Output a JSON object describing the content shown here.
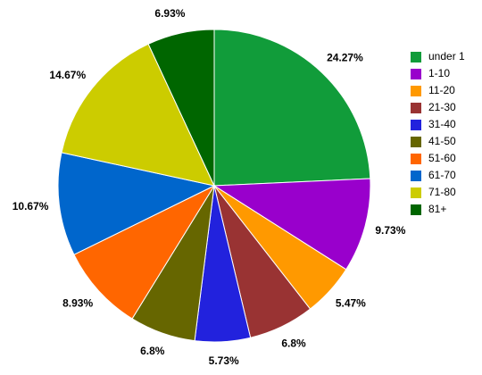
{
  "chart_data": {
    "type": "pie",
    "categories": [
      "under 1",
      "1-10",
      "11-20",
      "21-30",
      "31-40",
      "41-50",
      "51-60",
      "61-70",
      "71-80",
      "81+"
    ],
    "values": [
      24.27,
      9.73,
      5.47,
      6.8,
      5.73,
      6.8,
      8.93,
      10.67,
      14.67,
      6.93
    ],
    "value_labels": [
      "24.27%",
      "9.73%",
      "5.47%",
      "6.8%",
      "5.73%",
      "6.8%",
      "8.93%",
      "10.67%",
      "14.67%",
      "6.93%"
    ],
    "colors": [
      "#119c3a",
      "#9900cc",
      "#ff9900",
      "#993333",
      "#2222dd",
      "#666600",
      "#ff6600",
      "#0066cc",
      "#cccc00",
      "#006600"
    ],
    "legend": "right"
  }
}
